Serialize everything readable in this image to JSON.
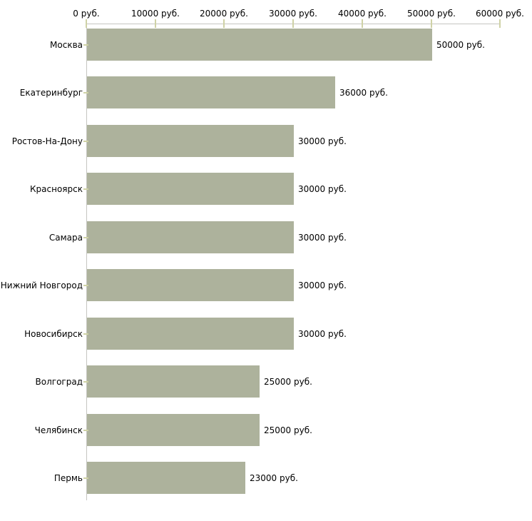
{
  "chart_data": {
    "type": "bar",
    "orientation": "horizontal",
    "title": "",
    "categories": [
      "Москва",
      "Екатеринбург",
      "Ростов-На-Дону",
      "Красноярск",
      "Самара",
      "Нижний Новгород",
      "Новосибирск",
      "Волгоград",
      "Челябинск",
      "Пермь"
    ],
    "values": [
      50000,
      36000,
      30000,
      30000,
      30000,
      30000,
      30000,
      25000,
      25000,
      23000
    ],
    "value_labels": [
      "50000 руб.",
      "36000 руб.",
      "30000 руб.",
      "30000 руб.",
      "30000 руб.",
      "30000 руб.",
      "30000 руб.",
      "25000 руб.",
      "25000 руб.",
      "23000 руб."
    ],
    "x_axis": {
      "min": 0,
      "max": 60000,
      "step": 10000,
      "unit": "руб.",
      "tick_values": [
        0,
        10000,
        20000,
        30000,
        40000,
        50000,
        60000
      ],
      "tick_labels": [
        "0 руб.",
        "10000 руб.",
        "20000 руб.",
        "30000 руб.",
        "40000 руб.",
        "50000 руб.",
        "60000 руб."
      ]
    },
    "legend": {
      "visible": false
    },
    "grid": {
      "visible": false
    },
    "colors": {
      "bar": "#adb29c",
      "axis_line": "#c5c5c1",
      "tick_mark": "#cfd2a6",
      "text": "#000000",
      "background": "#ffffff"
    }
  }
}
